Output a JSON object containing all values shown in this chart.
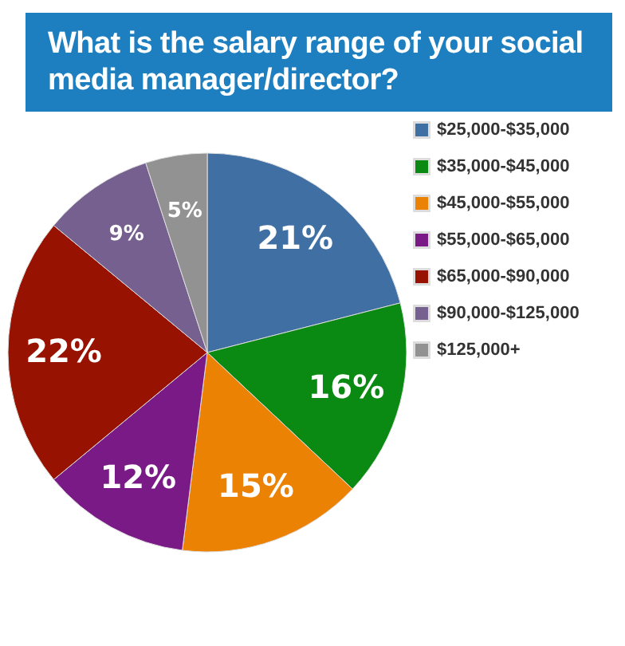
{
  "chart_data": {
    "type": "pie",
    "title": "What is the salary range of your social media manager/director?",
    "categories": [
      "$25,000-$35,000",
      "$35,000-$45,000",
      "$45,000-$55,000",
      "$55,000-$65,000",
      "$65,000-$90,000",
      "$90,000-$125,000",
      "$125,000+"
    ],
    "values": [
      21,
      16,
      15,
      12,
      22,
      9,
      5
    ],
    "value_labels": [
      "21%",
      "16%",
      "15%",
      "12%",
      "22%",
      "9%",
      "5%"
    ],
    "colors": [
      "#3f6fa3",
      "#0a8a12",
      "#ec8204",
      "#7a1a86",
      "#971200",
      "#76608f",
      "#929292"
    ],
    "legend": "right"
  }
}
